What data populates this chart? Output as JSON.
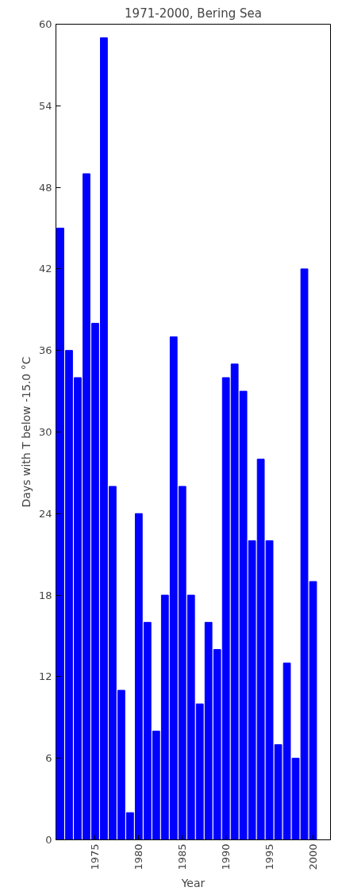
{
  "chart_data": {
    "type": "bar",
    "title": "1971-2000, Bering Sea",
    "xlabel": "Year",
    "ylabel": "Days with T below -15.0 °C",
    "x": [
      1971,
      1972,
      1973,
      1974,
      1975,
      1976,
      1977,
      1978,
      1979,
      1980,
      1981,
      1982,
      1983,
      1984,
      1985,
      1986,
      1987,
      1988,
      1989,
      1990,
      1991,
      1992,
      1993,
      1994,
      1995,
      1996,
      1997,
      1998,
      1999,
      2000
    ],
    "values": [
      45,
      36,
      34,
      49,
      38,
      59,
      26,
      11,
      2,
      24,
      16,
      8,
      18,
      37,
      26,
      18,
      10,
      16,
      14,
      34,
      35,
      33,
      22,
      28,
      22,
      7,
      13,
      6,
      42,
      19
    ],
    "color": "#0000ff",
    "xlim": [
      1970.5,
      2002
    ],
    "xticks": [
      1975,
      1980,
      1985,
      1990,
      1995,
      2000
    ],
    "ylim": [
      0,
      60
    ],
    "yticks": [
      0,
      6,
      12,
      18,
      24,
      30,
      36,
      42,
      48,
      54,
      60
    ],
    "grid": false
  }
}
